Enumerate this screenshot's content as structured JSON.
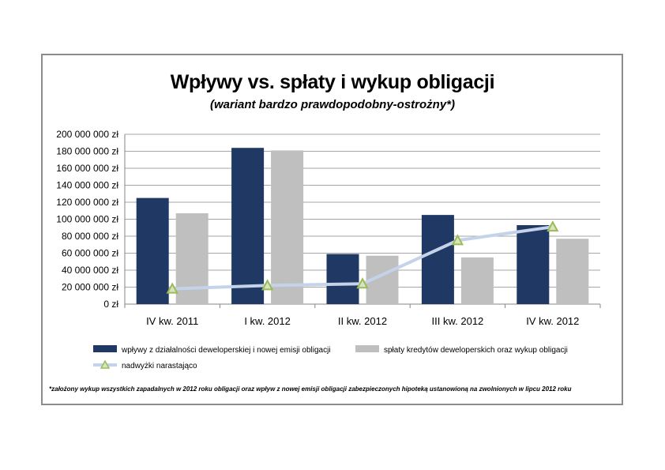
{
  "chart_data": {
    "type": "bar",
    "title": "Wpływy vs. spłaty i wykup obligacji",
    "subtitle": "(wariant bardzo prawdopodobny-ostrożny*)",
    "categories": [
      "IV kw. 2011",
      "I kw. 2012",
      "II kw. 2012",
      "III kw. 2012",
      "IV kw. 2012"
    ],
    "series": [
      {
        "name": "wpływy z działalności deweloperskiej i nowej emisji obligacji",
        "type": "bar",
        "color": "#1f3864",
        "values": [
          125000000,
          184000000,
          59000000,
          105000000,
          93000000
        ]
      },
      {
        "name": "spłaty kredytów deweloperskich oraz wykup obligacji",
        "type": "bar",
        "color": "#bfbfbf",
        "values": [
          107000000,
          181000000,
          57000000,
          55000000,
          77000000
        ]
      },
      {
        "name": "nadwyżki narastająco",
        "type": "line",
        "color": "#c5d3ea",
        "marker_color": "#9bbb59",
        "values": [
          18000000,
          22000000,
          24000000,
          75000000,
          91000000
        ]
      }
    ],
    "ylim": [
      0,
      200000000
    ],
    "yticks": [
      "0 zł",
      "20 000 000 zł",
      "40 000 000 zł",
      "60 000 000 zł",
      "80 000 000 zł",
      "100 000 000 zł",
      "120 000 000 zł",
      "140 000 000 zł",
      "160 000 000 zł",
      "180 000 000 zł",
      "200 000 000 zł"
    ],
    "grid": true,
    "legend_position": "bottom",
    "footnote": "*założony wykup wszystkich zapadalnych w 2012 roku obligacji oraz wpływ z nowej emisji obligacji  zabezpieczonych  hipoteką ustanowioną na zwolnionych  w lipcu 2012 roku"
  }
}
